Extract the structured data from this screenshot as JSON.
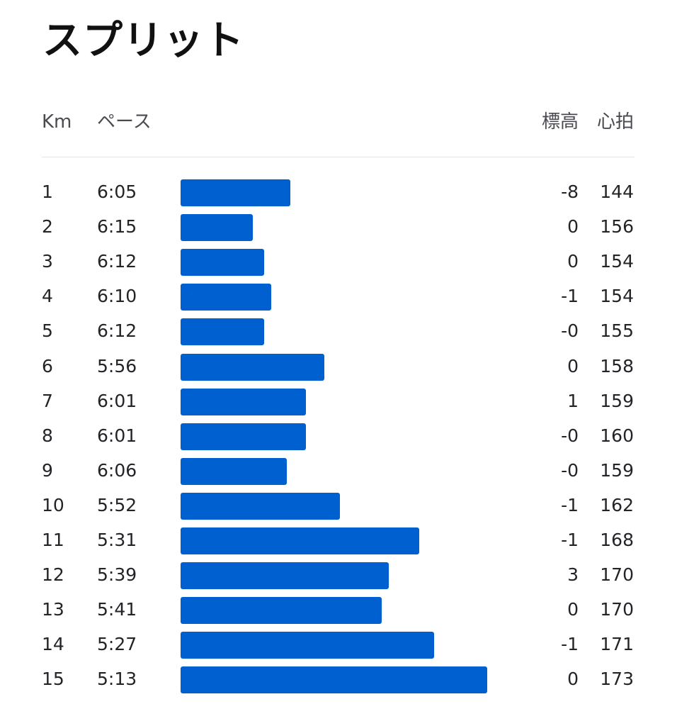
{
  "title": "スプリット",
  "columns": {
    "km": "Km",
    "pace": "ペース",
    "elevation": "標高",
    "heart_rate": "心拍"
  },
  "colors": {
    "bar": "#0060d0",
    "text": "#242428",
    "header_text": "#4a4a50",
    "divider": "#e4e4e6"
  },
  "splits": [
    {
      "km": "1",
      "pace": "6:05",
      "pace_seconds": 365,
      "elevation": "-8",
      "heart_rate": "144"
    },
    {
      "km": "2",
      "pace": "6:15",
      "pace_seconds": 375,
      "elevation": "0",
      "heart_rate": "156"
    },
    {
      "km": "3",
      "pace": "6:12",
      "pace_seconds": 372,
      "elevation": "0",
      "heart_rate": "154"
    },
    {
      "km": "4",
      "pace": "6:10",
      "pace_seconds": 370,
      "elevation": "-1",
      "heart_rate": "154"
    },
    {
      "km": "5",
      "pace": "6:12",
      "pace_seconds": 372,
      "elevation": "-0",
      "heart_rate": "155"
    },
    {
      "km": "6",
      "pace": "5:56",
      "pace_seconds": 356,
      "elevation": "0",
      "heart_rate": "158"
    },
    {
      "km": "7",
      "pace": "6:01",
      "pace_seconds": 361,
      "elevation": "1",
      "heart_rate": "159"
    },
    {
      "km": "8",
      "pace": "6:01",
      "pace_seconds": 361,
      "elevation": "-0",
      "heart_rate": "160"
    },
    {
      "km": "9",
      "pace": "6:06",
      "pace_seconds": 366,
      "elevation": "-0",
      "heart_rate": "159"
    },
    {
      "km": "10",
      "pace": "5:52",
      "pace_seconds": 352,
      "elevation": "-1",
      "heart_rate": "162"
    },
    {
      "km": "11",
      "pace": "5:31",
      "pace_seconds": 331,
      "elevation": "-1",
      "heart_rate": "168"
    },
    {
      "km": "12",
      "pace": "5:39",
      "pace_seconds": 339,
      "elevation": "3",
      "heart_rate": "170"
    },
    {
      "km": "13",
      "pace": "5:41",
      "pace_seconds": 341,
      "elevation": "0",
      "heart_rate": "170"
    },
    {
      "km": "14",
      "pace": "5:27",
      "pace_seconds": 327,
      "elevation": "-1",
      "heart_rate": "171"
    },
    {
      "km": "15",
      "pace": "5:13",
      "pace_seconds": 313,
      "elevation": "0",
      "heart_rate": "173"
    }
  ]
}
